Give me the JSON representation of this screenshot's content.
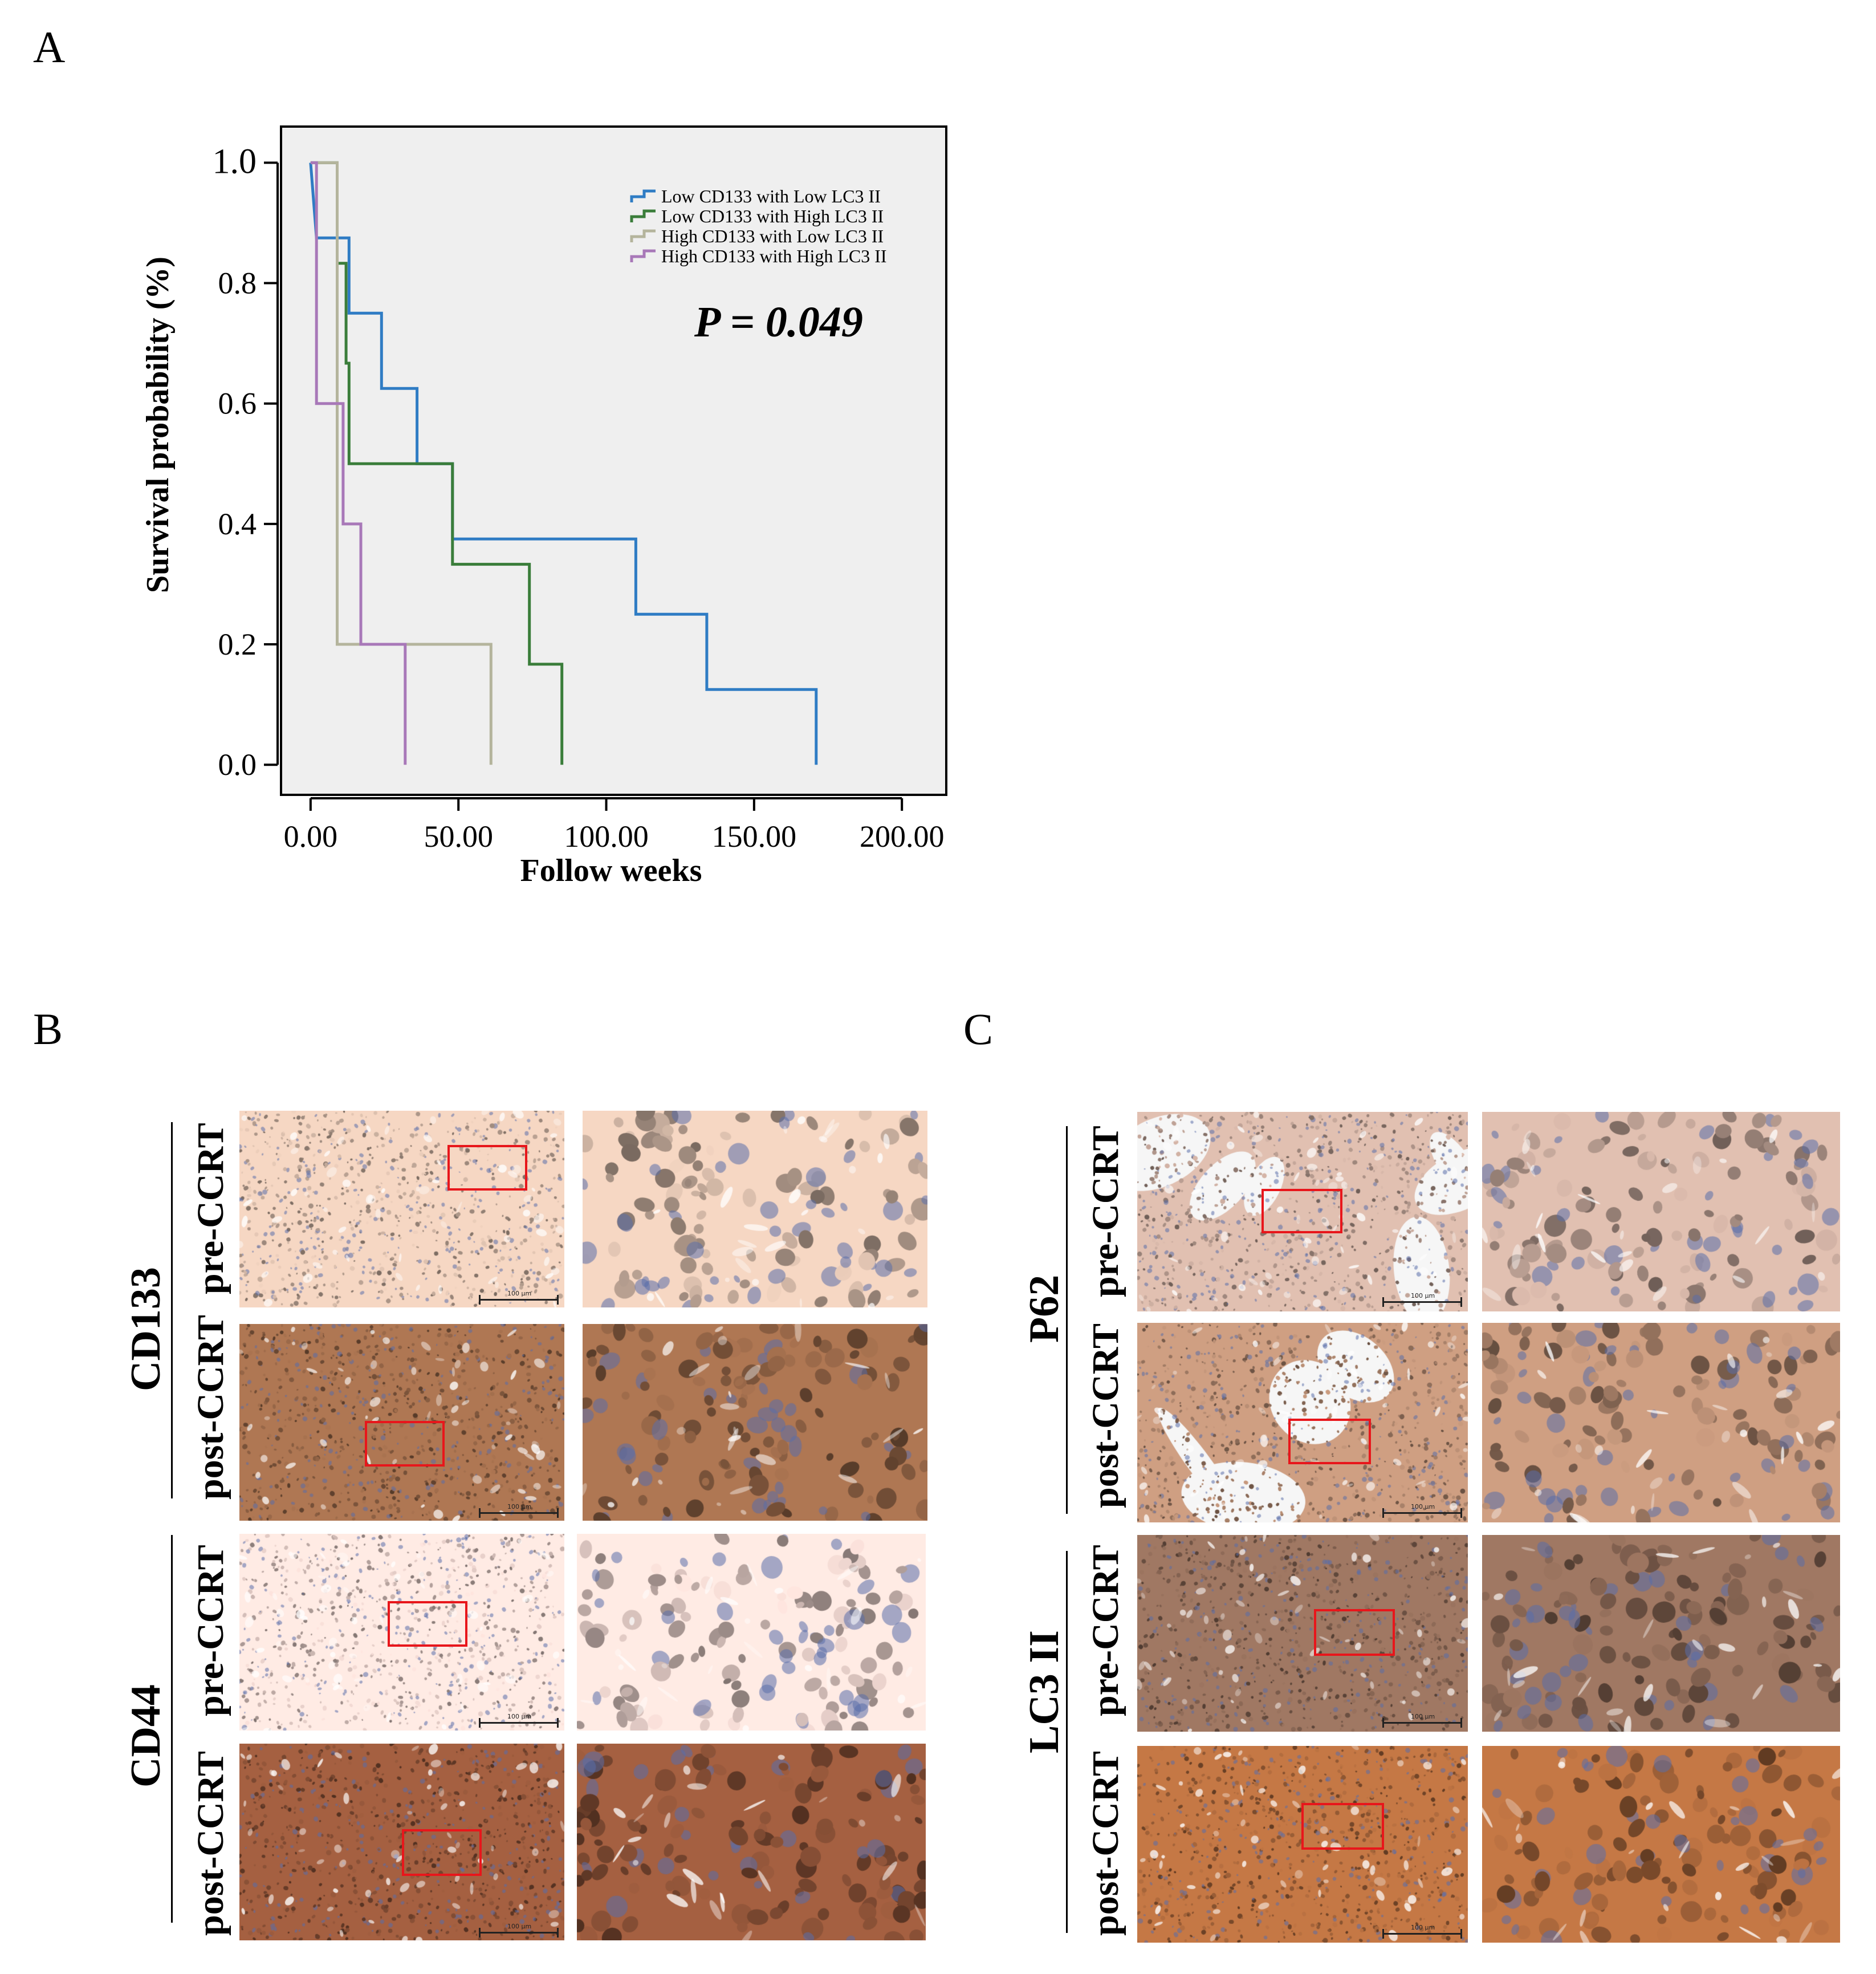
{
  "panels": {
    "A": {
      "label": "A"
    },
    "B": {
      "label": "B"
    },
    "C": {
      "label": "C"
    }
  },
  "chart_data": {
    "type": "line",
    "subtype": "kaplan-meier step",
    "xlabel": "Follow weeks",
    "ylabel": "Survival probability (%)",
    "xlim": [
      -10,
      215
    ],
    "ylim": [
      -0.05,
      1.06
    ],
    "x_ticks": [
      "0.00",
      "50.00",
      "100.00",
      "150.00",
      "200.00"
    ],
    "x_tick_values": [
      0,
      50,
      100,
      150,
      200
    ],
    "y_ticks": [
      "0.0",
      "0.2",
      "0.4",
      "0.6",
      "0.8",
      "1.0"
    ],
    "y_tick_values": [
      0.0,
      0.2,
      0.4,
      0.6,
      0.8,
      1.0
    ],
    "annotation": "P = 0.049",
    "legend_position": "top-right",
    "background": "#efefef",
    "series": [
      {
        "name": "Low CD133 with Low LC3 II",
        "color": "#2f7cc4",
        "x": [
          0,
          2,
          13,
          13,
          24,
          24,
          36,
          36,
          48,
          48,
          110,
          110,
          134,
          134,
          171,
          171
        ],
        "y": [
          1.0,
          0.875,
          0.875,
          0.75,
          0.75,
          0.625,
          0.625,
          0.5,
          0.5,
          0.375,
          0.375,
          0.25,
          0.25,
          0.125,
          0.125,
          0.0
        ]
      },
      {
        "name": "Low CD133 with High LC3 II",
        "color": "#3a7d3a",
        "x": [
          0,
          9,
          9,
          12,
          12,
          13,
          13,
          48,
          48,
          74,
          74,
          85,
          85
        ],
        "y": [
          1.0,
          1.0,
          0.833,
          0.833,
          0.667,
          0.667,
          0.5,
          0.5,
          0.333,
          0.333,
          0.167,
          0.167,
          0.0
        ]
      },
      {
        "name": "High CD133 with Low LC3 II",
        "color": "#b4b49c",
        "x": [
          0,
          9,
          9,
          12,
          12,
          61,
          61
        ],
        "y": [
          1.0,
          1.0,
          0.2,
          0.2,
          0.2,
          0.2,
          0.0
        ],
        "note": "drops directly to 0.2 at ~9 wk, ends at ~61 wk"
      },
      {
        "name": "High CD133 with High LC3 II",
        "color": "#a878b8",
        "x": [
          0,
          2,
          2,
          11,
          11,
          17,
          17,
          32,
          32
        ],
        "y": [
          1.0,
          1.0,
          0.6,
          0.6,
          0.4,
          0.4,
          0.2,
          0.2,
          0.0
        ]
      }
    ]
  },
  "panelB": {
    "groups": [
      {
        "marker": "CD133",
        "rows": [
          "pre-CCRT",
          "post-CCRT"
        ]
      },
      {
        "marker": "CD44",
        "rows": [
          "pre-CCRT",
          "post-CCRT"
        ]
      }
    ]
  },
  "panelC": {
    "groups": [
      {
        "marker": "P62",
        "rows": [
          "pre-CCRT",
          "post-CCRT"
        ]
      },
      {
        "marker": "LC3 II",
        "rows": [
          "pre-CCRT",
          "post-CCRT"
        ]
      }
    ]
  },
  "images": {
    "scale_label": "100 μm",
    "tones": {
      "b_cd133_pre": "#dcc0ae",
      "b_cd133_post": "#9c6a4a",
      "b_cd44_pre": "#ead2cc",
      "b_cd44_post": "#93563a",
      "c_p62_pre": "#c9ab9e",
      "c_p62_post": "#b98e74",
      "c_lc3_pre": "#8f6b58",
      "c_lc3_post": "#b06b3e"
    }
  }
}
